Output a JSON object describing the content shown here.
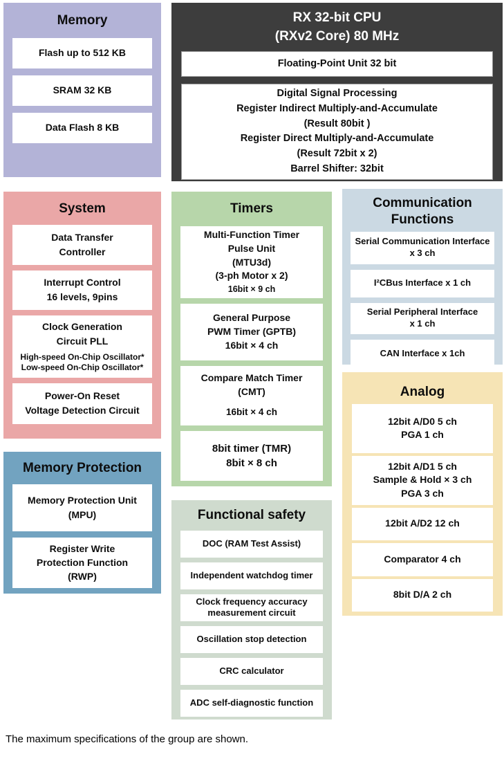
{
  "memory": {
    "title": "Memory",
    "items": [
      {
        "lines": [
          "Flash up to 512 KB"
        ]
      },
      {
        "lines": [
          "SRAM 32 KB"
        ]
      },
      {
        "lines": [
          "Data Flash 8 KB"
        ]
      }
    ]
  },
  "cpu": {
    "title_lines": [
      "RX 32-bit CPU",
      "(RXv2 Core) 80 MHz"
    ],
    "fpu_lines": [
      "Floating-Point Unit 32 bit"
    ],
    "dsp_lines": [
      "Digital Signal Processing",
      "Register Indirect Multiply-and-Accumulate",
      "(Result 80bit )",
      "Register Direct Multiply-and-Accumulate",
      "(Result 72bit x 2)",
      "Barrel Shifter: 32bit"
    ]
  },
  "system": {
    "title": "System",
    "items": [
      {
        "lines": [
          "Data Transfer",
          "Controller"
        ]
      },
      {
        "lines": [
          "Interrupt Control",
          "16 levels, 9pins"
        ]
      },
      {
        "lines": [
          "Clock Generation",
          "Circuit PLL"
        ],
        "small_lines": [
          "High-speed On-Chip Oscillator*",
          "Low-speed On-Chip Oscillator*"
        ]
      },
      {
        "lines": [
          "Power-On Reset",
          "Voltage Detection Circuit"
        ]
      }
    ]
  },
  "memory_protection": {
    "title": "Memory Protection",
    "items": [
      {
        "lines": [
          "Memory Protection Unit",
          "(MPU)"
        ]
      },
      {
        "lines": [
          "Register Write",
          "Protection Function",
          "(RWP)"
        ]
      }
    ]
  },
  "timers": {
    "title": "Timers",
    "items": [
      {
        "lines": [
          "Multi-Function Timer",
          "Pulse Unit",
          "(MTU3d)",
          "(3-ph Motor x 2)"
        ],
        "small_lines": [
          "16bit × 9 ch"
        ]
      },
      {
        "lines": [
          "General Purpose",
          "PWM Timer (GPTB)",
          "16bit × 4 ch"
        ]
      },
      {
        "lines": [
          "Compare Match Timer",
          "(CMT)"
        ],
        "small_lines": [
          "16bit × 4 ch"
        ]
      },
      {
        "lines": [
          "8bit timer (TMR)",
          "8bit × 8 ch"
        ]
      }
    ]
  },
  "functional_safety": {
    "title": "Functional safety",
    "items": [
      {
        "lines": [
          "DOC (RAM Test Assist)"
        ]
      },
      {
        "lines": [
          "Independent watchdog timer"
        ]
      },
      {
        "lines": [
          "Clock frequency accuracy",
          "measurement circuit"
        ]
      },
      {
        "lines": [
          "Oscillation stop detection"
        ]
      },
      {
        "lines": [
          "CRC calculator"
        ]
      },
      {
        "lines": [
          "ADC self-diagnostic function"
        ]
      }
    ]
  },
  "communication": {
    "title_lines": [
      "Communication",
      "Functions"
    ],
    "items": [
      {
        "lines": [
          "Serial Communication Interface",
          "x 3 ch"
        ]
      },
      {
        "lines": [
          "I²CBus Interface x 1 ch"
        ]
      },
      {
        "lines": [
          "Serial Peripheral Interface",
          "x 1 ch"
        ]
      },
      {
        "lines": [
          "CAN Interface x 1ch"
        ]
      }
    ]
  },
  "analog": {
    "title": "Analog",
    "items": [
      {
        "lines": [
          "12bit A/D0 5 ch",
          "PGA 1 ch"
        ]
      },
      {
        "lines": [
          "12bit A/D1 5 ch",
          "Sample & Hold × 3 ch",
          "PGA 3 ch"
        ]
      },
      {
        "lines": [
          "12bit A/D2 12 ch"
        ]
      },
      {
        "lines": [
          "Comparator 4 ch"
        ]
      },
      {
        "lines": [
          "8bit D/A 2 ch"
        ]
      }
    ]
  },
  "note": "The maximum specifications of the group are shown.",
  "colors": {
    "memory_bg": "#b3b3d7",
    "cpu_bg": "#3d3d3d",
    "system_bg": "#eaa7a7",
    "memory_protection_bg": "#72a3c0",
    "timers_bg": "#b7d6aa",
    "functional_safety_bg": "#cfdbce",
    "communication_bg": "#cbd9e3",
    "analog_bg": "#f6e4b5",
    "box_bg": "#ffffff",
    "text": "#0d0d0d",
    "cpu_title_text": "#ffffff"
  }
}
